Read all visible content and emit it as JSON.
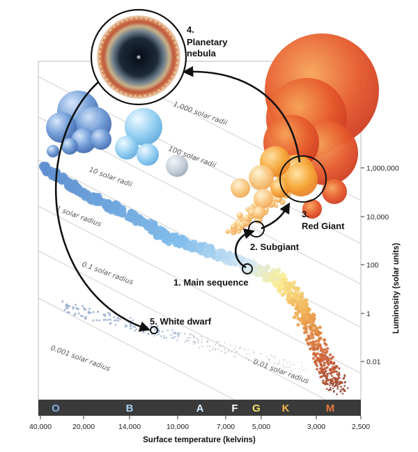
{
  "axes": {
    "x_title": "Surface temperature (kelvins)",
    "y_title": "Luminosity (solar units)",
    "x_ticks": [
      "40,000",
      "20,000",
      "14,000",
      "10,000",
      "7,000",
      "5,000",
      "3,000",
      "2,500"
    ],
    "y_ticks": [
      "1,000,000",
      "10,000",
      "100",
      "1",
      "0.01"
    ]
  },
  "radius_lines": [
    "1,000 solar radii",
    "100 solar radii",
    "10 solar radii",
    "1 solar radius",
    "0.1 solar radius",
    "0.01 solar radius",
    "0.001 solar radius"
  ],
  "spectral_classes": [
    {
      "letter": "O",
      "color": "#7fb2e6"
    },
    {
      "letter": "B",
      "color": "#a9cdf0"
    },
    {
      "letter": "A",
      "color": "#d8ecfb"
    },
    {
      "letter": "F",
      "color": "#ffffff"
    },
    {
      "letter": "G",
      "color": "#f7e36a"
    },
    {
      "letter": "K",
      "color": "#f3b74a"
    },
    {
      "letter": "M",
      "color": "#e9793a"
    }
  ],
  "stages": [
    {
      "num": "1.",
      "text": "Main sequence"
    },
    {
      "num": "2.",
      "text": "Subgiant"
    },
    {
      "num": "3.",
      "text": "Red Giant"
    },
    {
      "num": "4.",
      "text": "Planetary",
      "text2": "nebula"
    },
    {
      "num": "5.",
      "text": "White dwarf"
    }
  ],
  "colors": {
    "hot_blue": "#5f8fd0",
    "cool_red": "#e0462a",
    "white_dwarf": "#9aaed0",
    "class_bar": "#3a3a3a"
  }
}
